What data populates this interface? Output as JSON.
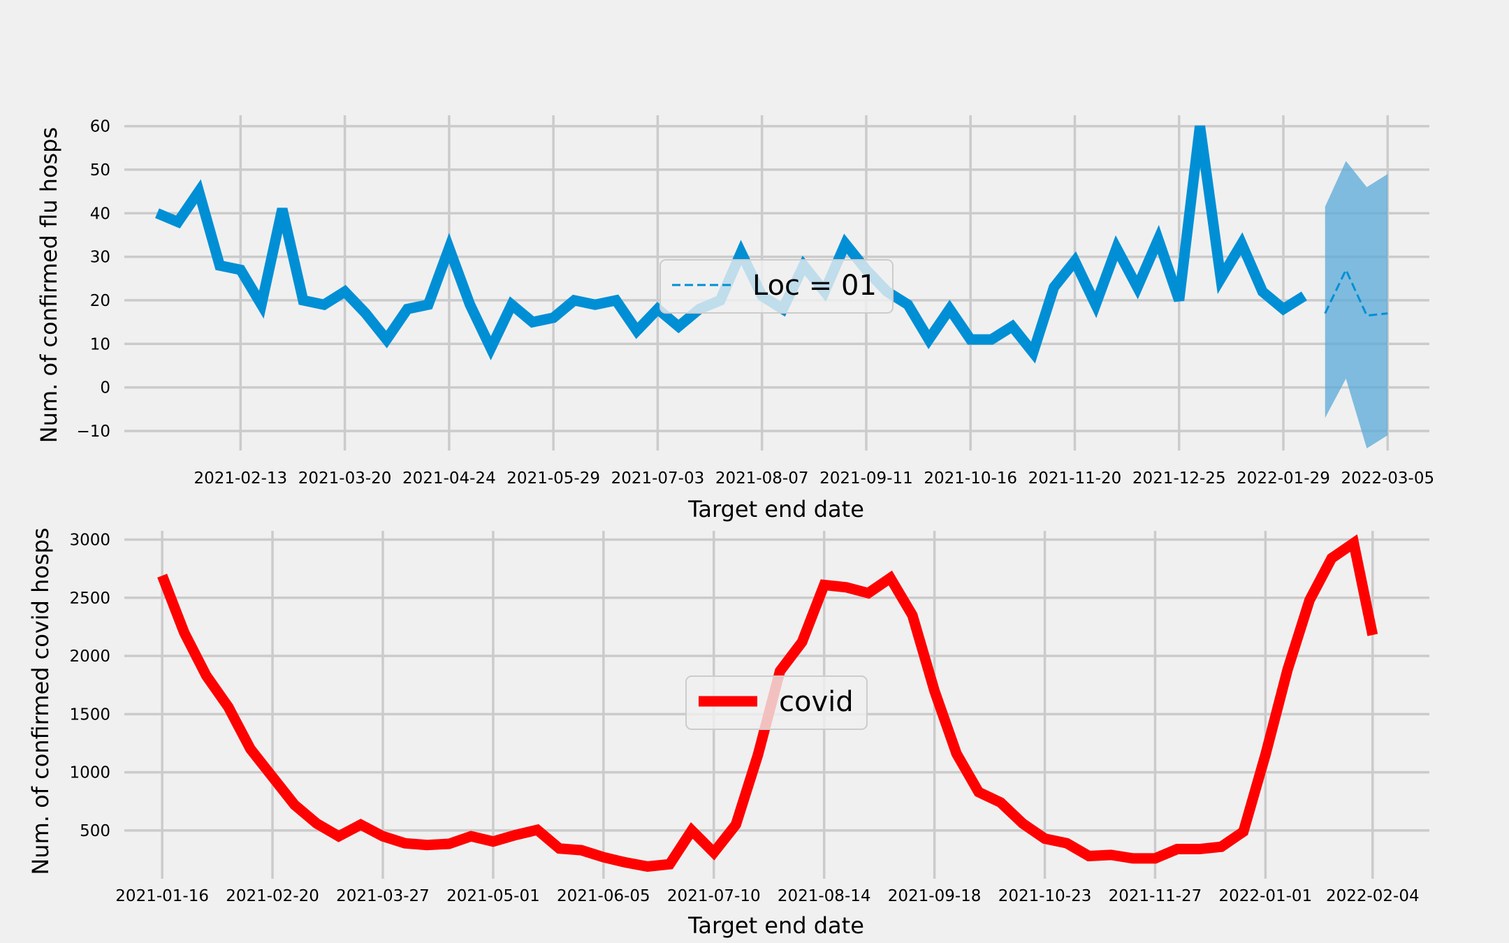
{
  "chart_data": [
    {
      "type": "line",
      "xlabel": "Target end date",
      "ylabel": "Num. of confirmed flu hosps",
      "xticks": [
        "2021-02-13",
        "2021-03-20",
        "2021-04-24",
        "2021-05-29",
        "2021-07-03",
        "2021-08-07",
        "2021-09-11",
        "2021-10-16",
        "2021-11-20",
        "2021-12-25",
        "2022-01-29",
        "2022-03-05"
      ],
      "yticks": [
        -10,
        0,
        10,
        20,
        30,
        40,
        50,
        60
      ],
      "xlim": [
        "2021-01-05",
        "2022-03-19"
      ],
      "ylim": [
        -14.5,
        62.5
      ],
      "grid": true,
      "legend": {
        "placement": "center",
        "entries": [
          "Loc = 01"
        ]
      },
      "colors": {
        "observed": "#008fd5",
        "forecast": "#008fd5",
        "band": "#5aa9d8"
      },
      "series": [
        {
          "style": "solid",
          "x": [
            "2021-01-16",
            "2021-01-23",
            "2021-01-30",
            "2021-02-06",
            "2021-02-13",
            "2021-02-20",
            "2021-02-27",
            "2021-03-06",
            "2021-03-13",
            "2021-03-20",
            "2021-03-27",
            "2021-04-03",
            "2021-04-10",
            "2021-04-17",
            "2021-04-24",
            "2021-05-01",
            "2021-05-08",
            "2021-05-15",
            "2021-05-22",
            "2021-05-29",
            "2021-06-05",
            "2021-06-12",
            "2021-06-19",
            "2021-06-26",
            "2021-07-03",
            "2021-07-10",
            "2021-07-17",
            "2021-07-24",
            "2021-07-31",
            "2021-08-07",
            "2021-08-14",
            "2021-08-21",
            "2021-08-28",
            "2021-09-04",
            "2021-09-11",
            "2021-09-18",
            "2021-09-25",
            "2021-10-02",
            "2021-10-09",
            "2021-10-16",
            "2021-10-23",
            "2021-10-30",
            "2021-11-06",
            "2021-11-13",
            "2021-11-20",
            "2021-11-27",
            "2021-12-04",
            "2021-12-11",
            "2021-12-18",
            "2021-12-25",
            "2022-01-01",
            "2022-01-08",
            "2022-01-15",
            "2022-01-22",
            "2022-01-29",
            "2022-02-05"
          ],
          "values": [
            40,
            38,
            45,
            28,
            27,
            19,
            41,
            20,
            19,
            22,
            17,
            11,
            18,
            19,
            32,
            19,
            9,
            19,
            15,
            16,
            20,
            19,
            20,
            13,
            18,
            14,
            18,
            20,
            31,
            21,
            18,
            28,
            22,
            33,
            27,
            22,
            19,
            11,
            18,
            11,
            11,
            14,
            8,
            23,
            29,
            19,
            32,
            23,
            34,
            20,
            60,
            25,
            33,
            22,
            18,
            21
          ]
        },
        {
          "style": "dashed",
          "name": "Loc = 01",
          "x": [
            "2022-02-12",
            "2022-02-19",
            "2022-02-26",
            "2022-03-05"
          ],
          "values": [
            17,
            27,
            16.5,
            17
          ],
          "lower": [
            -7,
            2,
            -14,
            -11
          ],
          "upper": [
            41.5,
            52,
            46,
            49
          ]
        }
      ]
    },
    {
      "type": "line",
      "xlabel": "Target end date",
      "ylabel": "Num. of confirmed covid hosps",
      "xticks": [
        "2021-01-16",
        "2021-02-20",
        "2021-03-27",
        "2021-05-01",
        "2021-06-05",
        "2021-07-10",
        "2021-08-14",
        "2021-09-18",
        "2021-10-23",
        "2021-11-27",
        "2022-01-01",
        "2022-02-04"
      ],
      "yticks": [
        500,
        1000,
        1500,
        2000,
        2500,
        3000
      ],
      "xlim": [
        "2021-01-04",
        "2022-02-22"
      ],
      "ylim": [
        85,
        3075
      ],
      "grid": true,
      "legend": {
        "placement": "center",
        "entries": [
          "covid"
        ]
      },
      "colors": {
        "covid": "#ff0000"
      },
      "series": [
        {
          "name": "covid",
          "x": [
            "2021-01-16",
            "2021-01-23",
            "2021-01-30",
            "2021-02-06",
            "2021-02-13",
            "2021-02-20",
            "2021-02-27",
            "2021-03-06",
            "2021-03-13",
            "2021-03-20",
            "2021-03-27",
            "2021-04-03",
            "2021-04-10",
            "2021-04-17",
            "2021-04-24",
            "2021-05-01",
            "2021-05-08",
            "2021-05-15",
            "2021-05-22",
            "2021-05-29",
            "2021-06-05",
            "2021-06-12",
            "2021-06-19",
            "2021-06-26",
            "2021-07-03",
            "2021-07-10",
            "2021-07-17",
            "2021-07-24",
            "2021-07-31",
            "2021-08-07",
            "2021-08-14",
            "2021-08-21",
            "2021-08-28",
            "2021-09-04",
            "2021-09-11",
            "2021-09-18",
            "2021-09-25",
            "2021-10-02",
            "2021-10-09",
            "2021-10-16",
            "2021-10-23",
            "2021-10-30",
            "2021-11-06",
            "2021-11-13",
            "2021-11-20",
            "2021-11-27",
            "2021-12-04",
            "2021-12-11",
            "2021-12-18",
            "2021-12-25",
            "2022-01-01",
            "2022-01-08",
            "2022-01-15",
            "2022-01-22",
            "2022-01-29",
            "2022-02-04"
          ],
          "values": [
            2690,
            2200,
            1830,
            1560,
            1200,
            960,
            720,
            560,
            450,
            550,
            450,
            390,
            375,
            385,
            450,
            405,
            460,
            505,
            345,
            330,
            270,
            225,
            190,
            210,
            500,
            310,
            550,
            1150,
            1870,
            2120,
            2610,
            2590,
            2540,
            2670,
            2350,
            1700,
            1160,
            830,
            740,
            560,
            430,
            390,
            280,
            290,
            260,
            260,
            340,
            340,
            360,
            490,
            1150,
            1880,
            2480,
            2840,
            2970,
            2180
          ]
        }
      ]
    }
  ]
}
